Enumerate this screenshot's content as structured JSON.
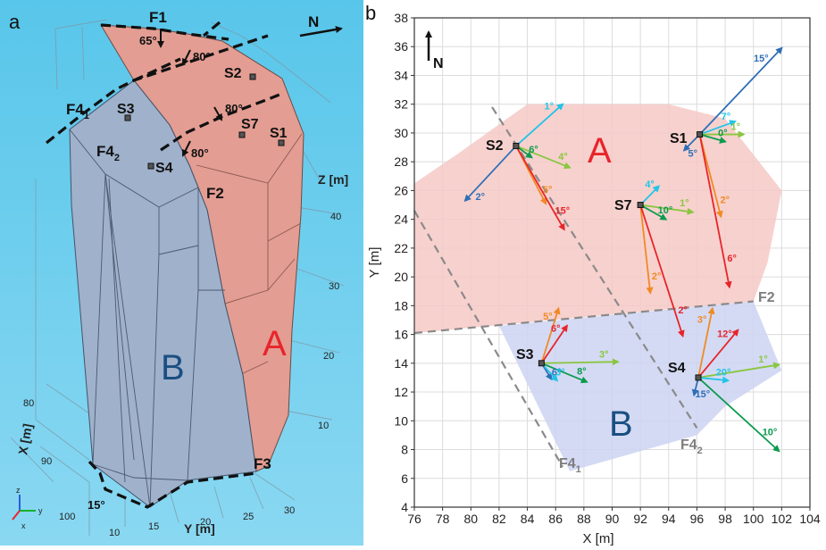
{
  "panel_a": {
    "panel_label": "a",
    "north_label": "N",
    "fault_labels": {
      "F1": "F1",
      "F2": "F2",
      "F3": "F3",
      "F4_1_base": "F4",
      "F4_1_sub": "1",
      "F4_2_base": "F4",
      "F4_2_sub": "2"
    },
    "dip_labels": {
      "f1": "65°",
      "d1": "80°",
      "d2": "80°",
      "d3": "80°",
      "f3": "15°"
    },
    "stations": {
      "S1": "S1",
      "S2": "S2",
      "S3": "S3",
      "S4": "S4",
      "S7": "S7"
    },
    "block_labels": {
      "A": "A",
      "B": "B"
    },
    "axis_labels": {
      "z": "Z [m]",
      "x": "X [m]",
      "y": "Y [m]"
    },
    "z_ticks": [
      "40",
      "30",
      "20",
      "10"
    ],
    "x_ticks": [
      "80",
      "90",
      "100"
    ],
    "y_ticks": [
      "10",
      "15",
      "20",
      "25",
      "30"
    ],
    "triad": {
      "z": "z",
      "y": "y",
      "x": "x"
    },
    "colors": {
      "sky": "#5ec8ea",
      "block_a": "#e3a296",
      "block_b": "#9eb2cc"
    }
  },
  "panel_b": {
    "panel_label": "b",
    "north_label": "N",
    "x_ticks": [
      "76",
      "78",
      "80",
      "82",
      "84",
      "86",
      "88",
      "90",
      "92",
      "94",
      "96",
      "98",
      "100",
      "102",
      "104"
    ],
    "y_ticks": [
      "4",
      "6",
      "8",
      "10",
      "12",
      "14",
      "16",
      "18",
      "20",
      "22",
      "24",
      "26",
      "28",
      "30",
      "32",
      "34",
      "36",
      "38"
    ],
    "x_axis_label": "X [m]",
    "y_axis_label": "Y [m]",
    "zones": {
      "A": "A",
      "B": "B"
    },
    "fault_labels": {
      "F2": "F2",
      "F4_1_base": "F4",
      "F4_1_sub": "1",
      "F4_2_base": "F4",
      "F4_2_sub": "2"
    },
    "stations": {
      "S1": "S1",
      "S2": "S2",
      "S3": "S3",
      "S4": "S4",
      "S7": "S7"
    },
    "colors": {
      "zone_a": "#f6c9c6",
      "zone_b": "#cdd3f2",
      "fault": "#8a8a8a"
    }
  },
  "chart_data": {
    "type": "scatter",
    "xlabel": "X [m]",
    "ylabel": "Y [m]",
    "xlim": [
      76,
      104
    ],
    "ylim": [
      4,
      38
    ],
    "grid": true,
    "zones": [
      {
        "name": "A",
        "polygon": [
          [
            76,
            26.5
          ],
          [
            79,
            28.5
          ],
          [
            84,
            32
          ],
          [
            94,
            32
          ],
          [
            98,
            31
          ],
          [
            102,
            26
          ],
          [
            101,
            21
          ],
          [
            100,
            18.3
          ],
          [
            76,
            16.1
          ]
        ]
      },
      {
        "name": "B",
        "polygon": [
          [
            82,
            16.6
          ],
          [
            100,
            18.3
          ],
          [
            102,
            13.5
          ],
          [
            98,
            11
          ],
          [
            96,
            9
          ],
          [
            87,
            6.5
          ]
        ]
      }
    ],
    "faults": [
      {
        "name": "F2",
        "points": [
          [
            76,
            16.1
          ],
          [
            100,
            18.3
          ]
        ]
      },
      {
        "name": "F4_1",
        "points": [
          [
            76,
            24.6
          ],
          [
            86.5,
            6.8
          ]
        ]
      },
      {
        "name": "F4_2",
        "points": [
          [
            81.5,
            31.8
          ],
          [
            96,
            9.5
          ]
        ]
      }
    ],
    "stations": [
      {
        "name": "S1",
        "x": 96.2,
        "y": 29.9,
        "vectors": [
          {
            "to": [
              102,
              35.9
            ],
            "label": "15°",
            "color": "#2f6fb5"
          },
          {
            "to": [
              98.7,
              30.8
            ],
            "label": "7°",
            "color": "#22c4e8"
          },
          {
            "to": [
              99.3,
              29.9
            ],
            "label": "1°",
            "color": "#8ac640"
          },
          {
            "to": [
              98,
              29.4
            ],
            "label": "0°",
            "color": "#0b9b4d"
          },
          {
            "to": [
              95.1,
              28.8
            ],
            "label": "5°",
            "color": "#2f6fb5"
          },
          {
            "to": [
              97.7,
              24.2
            ],
            "label": "2°",
            "color": "#f08a24"
          },
          {
            "to": [
              98.3,
              19.3
            ],
            "label": "6°",
            "color": "#e8252a"
          }
        ]
      },
      {
        "name": "S2",
        "x": 83.2,
        "y": 29.1,
        "vectors": [
          {
            "to": [
              86.5,
              32
            ],
            "label": "1°",
            "color": "#22c4e8"
          },
          {
            "to": [
              79.6,
              25.3
            ],
            "label": "2°",
            "color": "#2f6fb5"
          },
          {
            "to": [
              87,
              27.6
            ],
            "label": "4°",
            "color": "#8ac640"
          },
          {
            "to": [
              84.3,
              28.3
            ],
            "label": "6°",
            "color": "#0b9b4d"
          },
          {
            "to": [
              85.3,
              25.1
            ],
            "label": "5°",
            "color": "#f08a24"
          },
          {
            "to": [
              86.6,
              23.3
            ],
            "label": "15°",
            "color": "#e8252a"
          }
        ]
      },
      {
        "name": "S7",
        "x": 92,
        "y": 25,
        "vectors": [
          {
            "to": [
              93.3,
              26.3
            ],
            "label": "4°",
            "color": "#22c4e8"
          },
          {
            "to": [
              95.7,
              24.5
            ],
            "label": "1°",
            "color": "#8ac640"
          },
          {
            "to": [
              93.8,
              24
            ],
            "label": "10°",
            "color": "#0b9b4d"
          },
          {
            "to": [
              92.7,
              18.9
            ],
            "label": "2°",
            "color": "#f08a24"
          },
          {
            "to": [
              95,
              15.9
            ],
            "label": "2°",
            "color": "#e8252a"
          }
        ]
      },
      {
        "name": "S3",
        "x": 85,
        "y": 14,
        "vectors": [
          {
            "to": [
              86.2,
              17.8
            ],
            "label": "5°",
            "color": "#f08a24"
          },
          {
            "to": [
              86.8,
              16.6
            ],
            "label": "6°",
            "color": "#e8252a"
          },
          {
            "to": [
              90.4,
              14.1
            ],
            "label": "3°",
            "color": "#8ac640"
          },
          {
            "to": [
              88.2,
              12.7
            ],
            "label": "8°",
            "color": "#0b9b4d"
          },
          {
            "to": [
              85.7,
              12.9
            ],
            "label": "6°",
            "color": "#2f6fb5"
          },
          {
            "to": [
              86.1,
              12.8
            ],
            "label": "3°",
            "color": "#22c4e8"
          }
        ]
      },
      {
        "name": "S4",
        "x": 96.1,
        "y": 13,
        "vectors": [
          {
            "to": [
              97.1,
              17.8
            ],
            "label": "3°",
            "color": "#f08a24"
          },
          {
            "to": [
              98.9,
              16.3
            ],
            "label": "12°",
            "color": "#e8252a"
          },
          {
            "to": [
              101.8,
              13.9
            ],
            "label": "1°",
            "color": "#8ac640"
          },
          {
            "to": [
              98.2,
              12.8
            ],
            "label": "20°",
            "color": "#22c4e8"
          },
          {
            "to": [
              95.8,
              11.8
            ],
            "label": "15°",
            "color": "#2f6fb5"
          },
          {
            "to": [
              101.8,
              7.9
            ],
            "label": "10°",
            "color": "#0b9b4d"
          }
        ]
      }
    ]
  }
}
